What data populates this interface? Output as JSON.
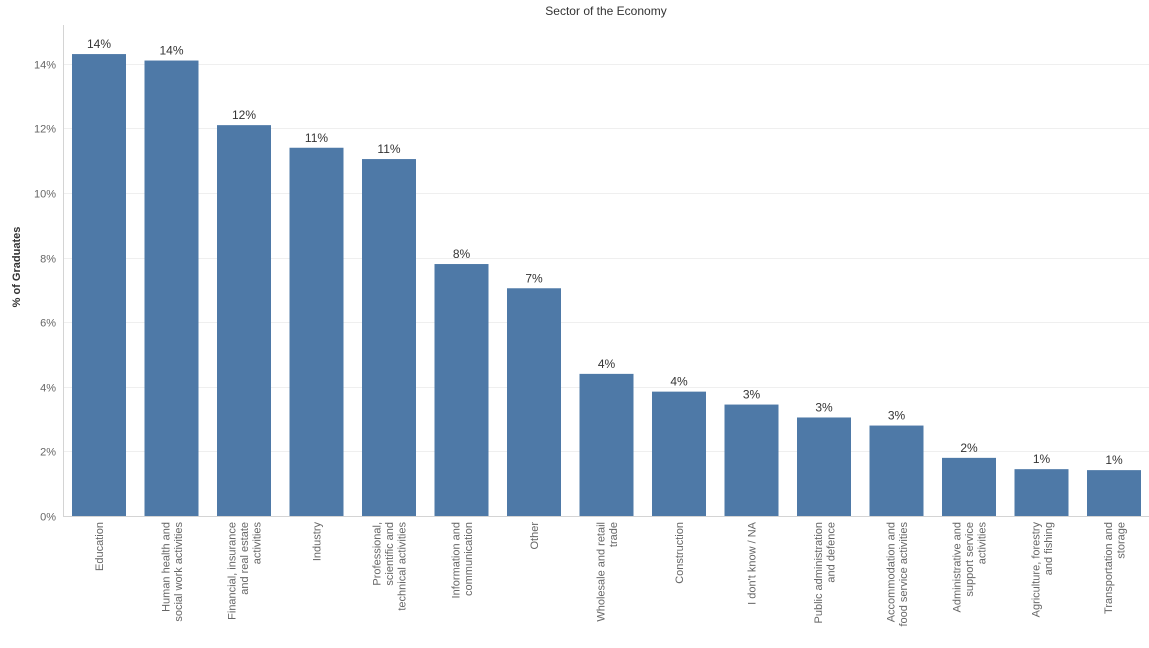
{
  "chart_data": {
    "type": "bar",
    "title": "Sector of the Economy",
    "xlabel": "",
    "ylabel": "% of Graduates",
    "ylim": [
      0,
      15.2
    ],
    "y_ticks": [
      "0%",
      "2%",
      "4%",
      "6%",
      "8%",
      "10%",
      "12%",
      "14%"
    ],
    "y_tick_values": [
      0,
      2,
      4,
      6,
      8,
      10,
      12,
      14
    ],
    "grid": true,
    "bar_color": "#4e79a7",
    "categories": [
      [
        "Education"
      ],
      [
        "Human health and",
        "social work activities"
      ],
      [
        "Financial, insurance",
        "and real estate",
        "activities"
      ],
      [
        "Industry"
      ],
      [
        "Professional,",
        "scientific and",
        "technical activities"
      ],
      [
        "Information and",
        "communication"
      ],
      [
        "Other"
      ],
      [
        "Wholesale and retail",
        "trade"
      ],
      [
        "Construction"
      ],
      [
        "I don't know / NA"
      ],
      [
        "Public administration",
        "and defence"
      ],
      [
        "Accommodation and",
        "food service activities"
      ],
      [
        "Administrative and",
        "support service",
        "activities"
      ],
      [
        "Agriculture, forestry",
        "and fishing"
      ],
      [
        "Transportation and",
        "storage"
      ]
    ],
    "values": [
      14.3,
      14.1,
      12.1,
      11.4,
      11.05,
      7.8,
      7.05,
      4.4,
      3.85,
      3.45,
      3.05,
      2.8,
      1.8,
      1.45,
      1.42
    ],
    "data_labels": [
      "14%",
      "14%",
      "12%",
      "11%",
      "11%",
      "8%",
      "7%",
      "4%",
      "4%",
      "3%",
      "3%",
      "3%",
      "2%",
      "1%",
      "1%"
    ]
  }
}
